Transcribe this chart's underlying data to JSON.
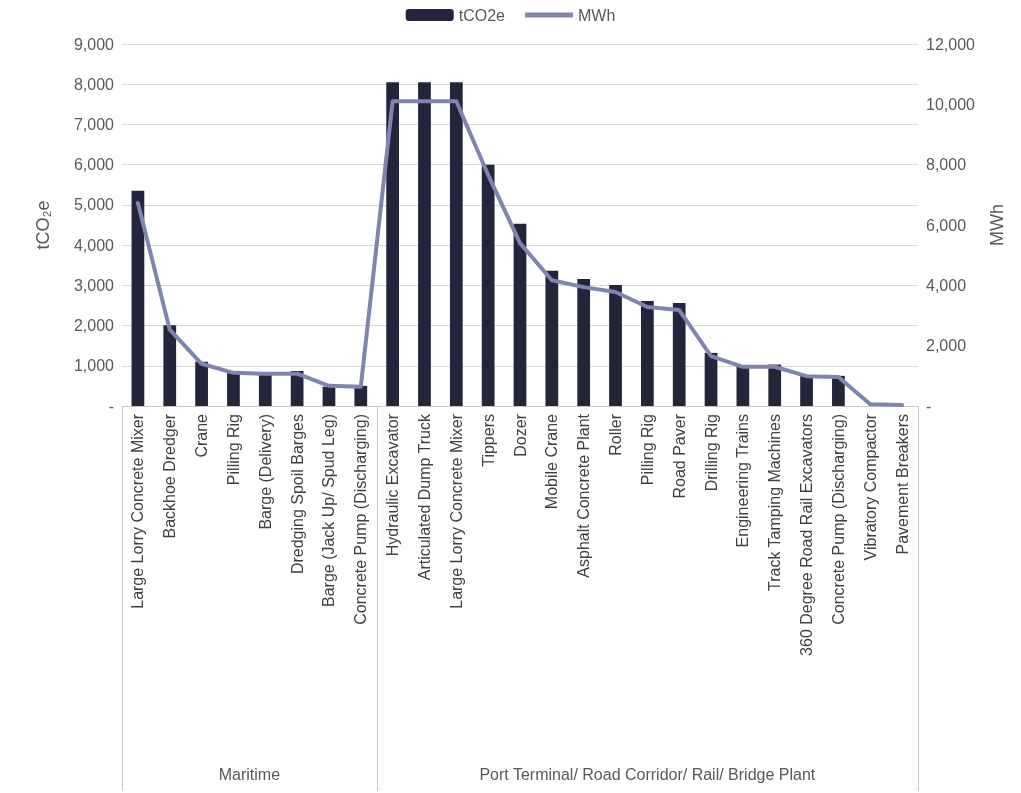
{
  "chart_data": {
    "type": "bar",
    "ylabel": "tCO₂e",
    "y2label": "MWh",
    "categories": [
      "Large Lorry Concrete Mixer",
      "Backhoe Dredger",
      "Crane",
      "Pilling Rig",
      "Barge (Delivery)",
      "Dredging Spoil Barges",
      "Barge (Jack Up/ Spud Leg)",
      "Concrete Pump (Discharging)",
      "Hydraulic Excavator",
      "Articulated Dump Truck",
      "Large Lorry Concrete Mixer",
      "Tippers",
      "Dozer",
      "Mobile Crane",
      "Asphalt Concrete Plant",
      "Roller",
      "Pilling Rig",
      "Road Paver",
      "Drilling Rig",
      "Engineering Trains",
      "Track Tamping Machines",
      "360 Degree Road Rail Excavators",
      "Concrete Pump (Discharging)",
      "Vibratory Compactor",
      "Pavement Breakers"
    ],
    "series": [
      {
        "name": "tCO2e",
        "color": "#23253a",
        "values": [
          5350,
          2010,
          1100,
          850,
          800,
          870,
          480,
          500,
          8050,
          8050,
          8050,
          6000,
          4530,
          3360,
          3160,
          3010,
          2610,
          2560,
          1320,
          1000,
          1030,
          770,
          750,
          null,
          null
        ]
      },
      {
        "name": "MWh",
        "type": "line",
        "axis": "y2",
        "color": "#8085b0",
        "values": [
          6730,
          2530,
          1400,
          1100,
          1070,
          1070,
          670,
          640,
          10100,
          10100,
          10100,
          7660,
          5400,
          4170,
          3940,
          3780,
          3280,
          3180,
          1650,
          1300,
          1300,
          990,
          960,
          60,
          30
        ]
      }
    ],
    "ylim": [
      0,
      9000
    ],
    "yticks": [
      {
        "value": 0,
        "label": "-"
      },
      {
        "value": 1000,
        "label": "1,000"
      },
      {
        "value": 2000,
        "label": "2,000"
      },
      {
        "value": 3000,
        "label": "3,000"
      },
      {
        "value": 4000,
        "label": "4,000"
      },
      {
        "value": 5000,
        "label": "5,000"
      },
      {
        "value": 6000,
        "label": "6,000"
      },
      {
        "value": 7000,
        "label": "7,000"
      },
      {
        "value": 8000,
        "label": "8,000"
      },
      {
        "value": 9000,
        "label": "9,000"
      }
    ],
    "y2lim": [
      0,
      12000
    ],
    "y2ticks": [
      {
        "value": 0,
        "label": "-"
      },
      {
        "value": 2000,
        "label": "2,000"
      },
      {
        "value": 4000,
        "label": "4,000"
      },
      {
        "value": 6000,
        "label": "6,000"
      },
      {
        "value": 8000,
        "label": "8,000"
      },
      {
        "value": 10000,
        "label": "10,000"
      },
      {
        "value": 12000,
        "label": "12,000"
      }
    ],
    "annotations": [
      "Maritime",
      "Port Terminal/ Road Corridor/ Rail/ Bridge Plant"
    ],
    "grid": "y",
    "legend": "top",
    "marker": "none",
    "line_style": "solid"
  }
}
